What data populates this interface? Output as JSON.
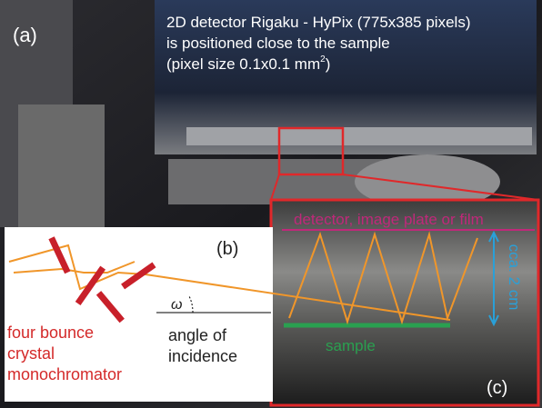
{
  "panel_a": {
    "label": "(a)",
    "caption": {
      "line1": "2D detector Rigaku - HyPix (775x385 pixels)",
      "line2": "is positioned close to the sample",
      "line3": "(pixel size 0.1x0.1 mm",
      "superscript": "2",
      "line3_end": ")"
    }
  },
  "panel_b": {
    "label": "(b)",
    "angle_symbol": "ω",
    "angle_text": [
      "angle of",
      "incidence"
    ],
    "monochromator_text": [
      "four bounce",
      "crystal",
      "monochromator"
    ]
  },
  "panel_c": {
    "label": "(c)",
    "detector_text": "detector, image plate or film",
    "distance_text": "cca. 2 cm",
    "sample_text": "sample"
  }
}
